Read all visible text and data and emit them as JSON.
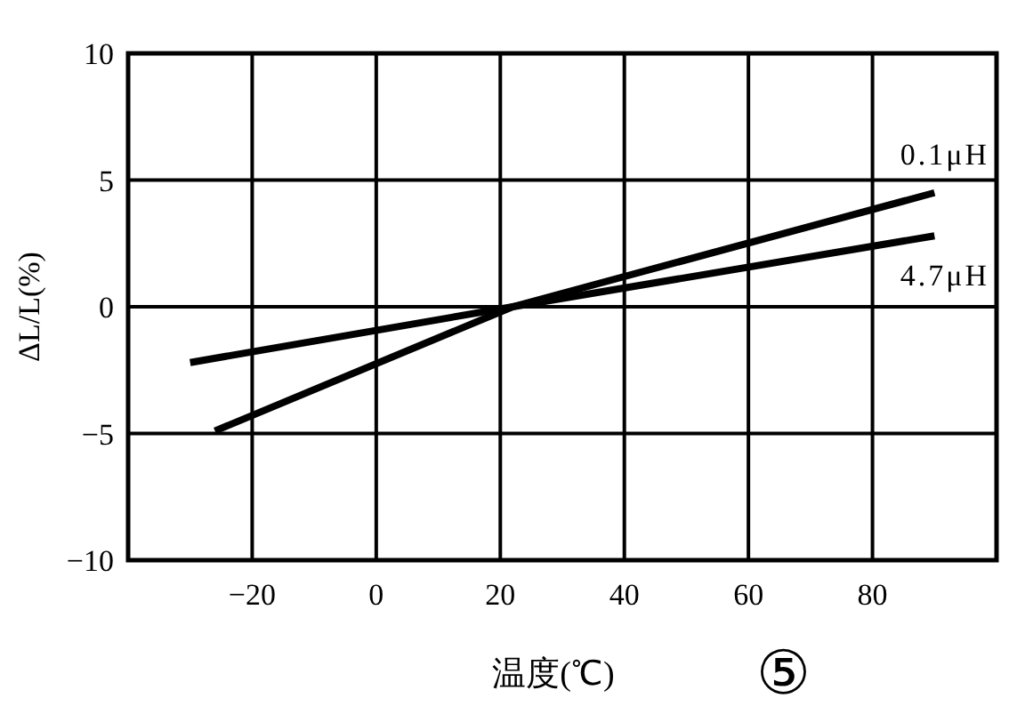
{
  "chart_data": {
    "type": "line",
    "xlabel": "温度(℃)",
    "ylabel": "ΔL/L(%)",
    "annotations": [
      "⑤"
    ],
    "xlim": [
      -40,
      100
    ],
    "xticks": [
      -20,
      0,
      20,
      40,
      60,
      80
    ],
    "ylim": [
      -10,
      10
    ],
    "yticks": [
      -10,
      -5,
      0,
      5,
      10
    ],
    "grid": true,
    "marker": "none",
    "line_style": "solid",
    "series": [
      {
        "name": "0.1μH",
        "color": "#000000",
        "x": [
          -26,
          22,
          90
        ],
        "values": [
          -4.9,
          0,
          4.5
        ]
      },
      {
        "name": "4.7μH",
        "color": "#000000",
        "x": [
          -30,
          22,
          90
        ],
        "values": [
          -2.2,
          0,
          2.8
        ]
      }
    ]
  }
}
